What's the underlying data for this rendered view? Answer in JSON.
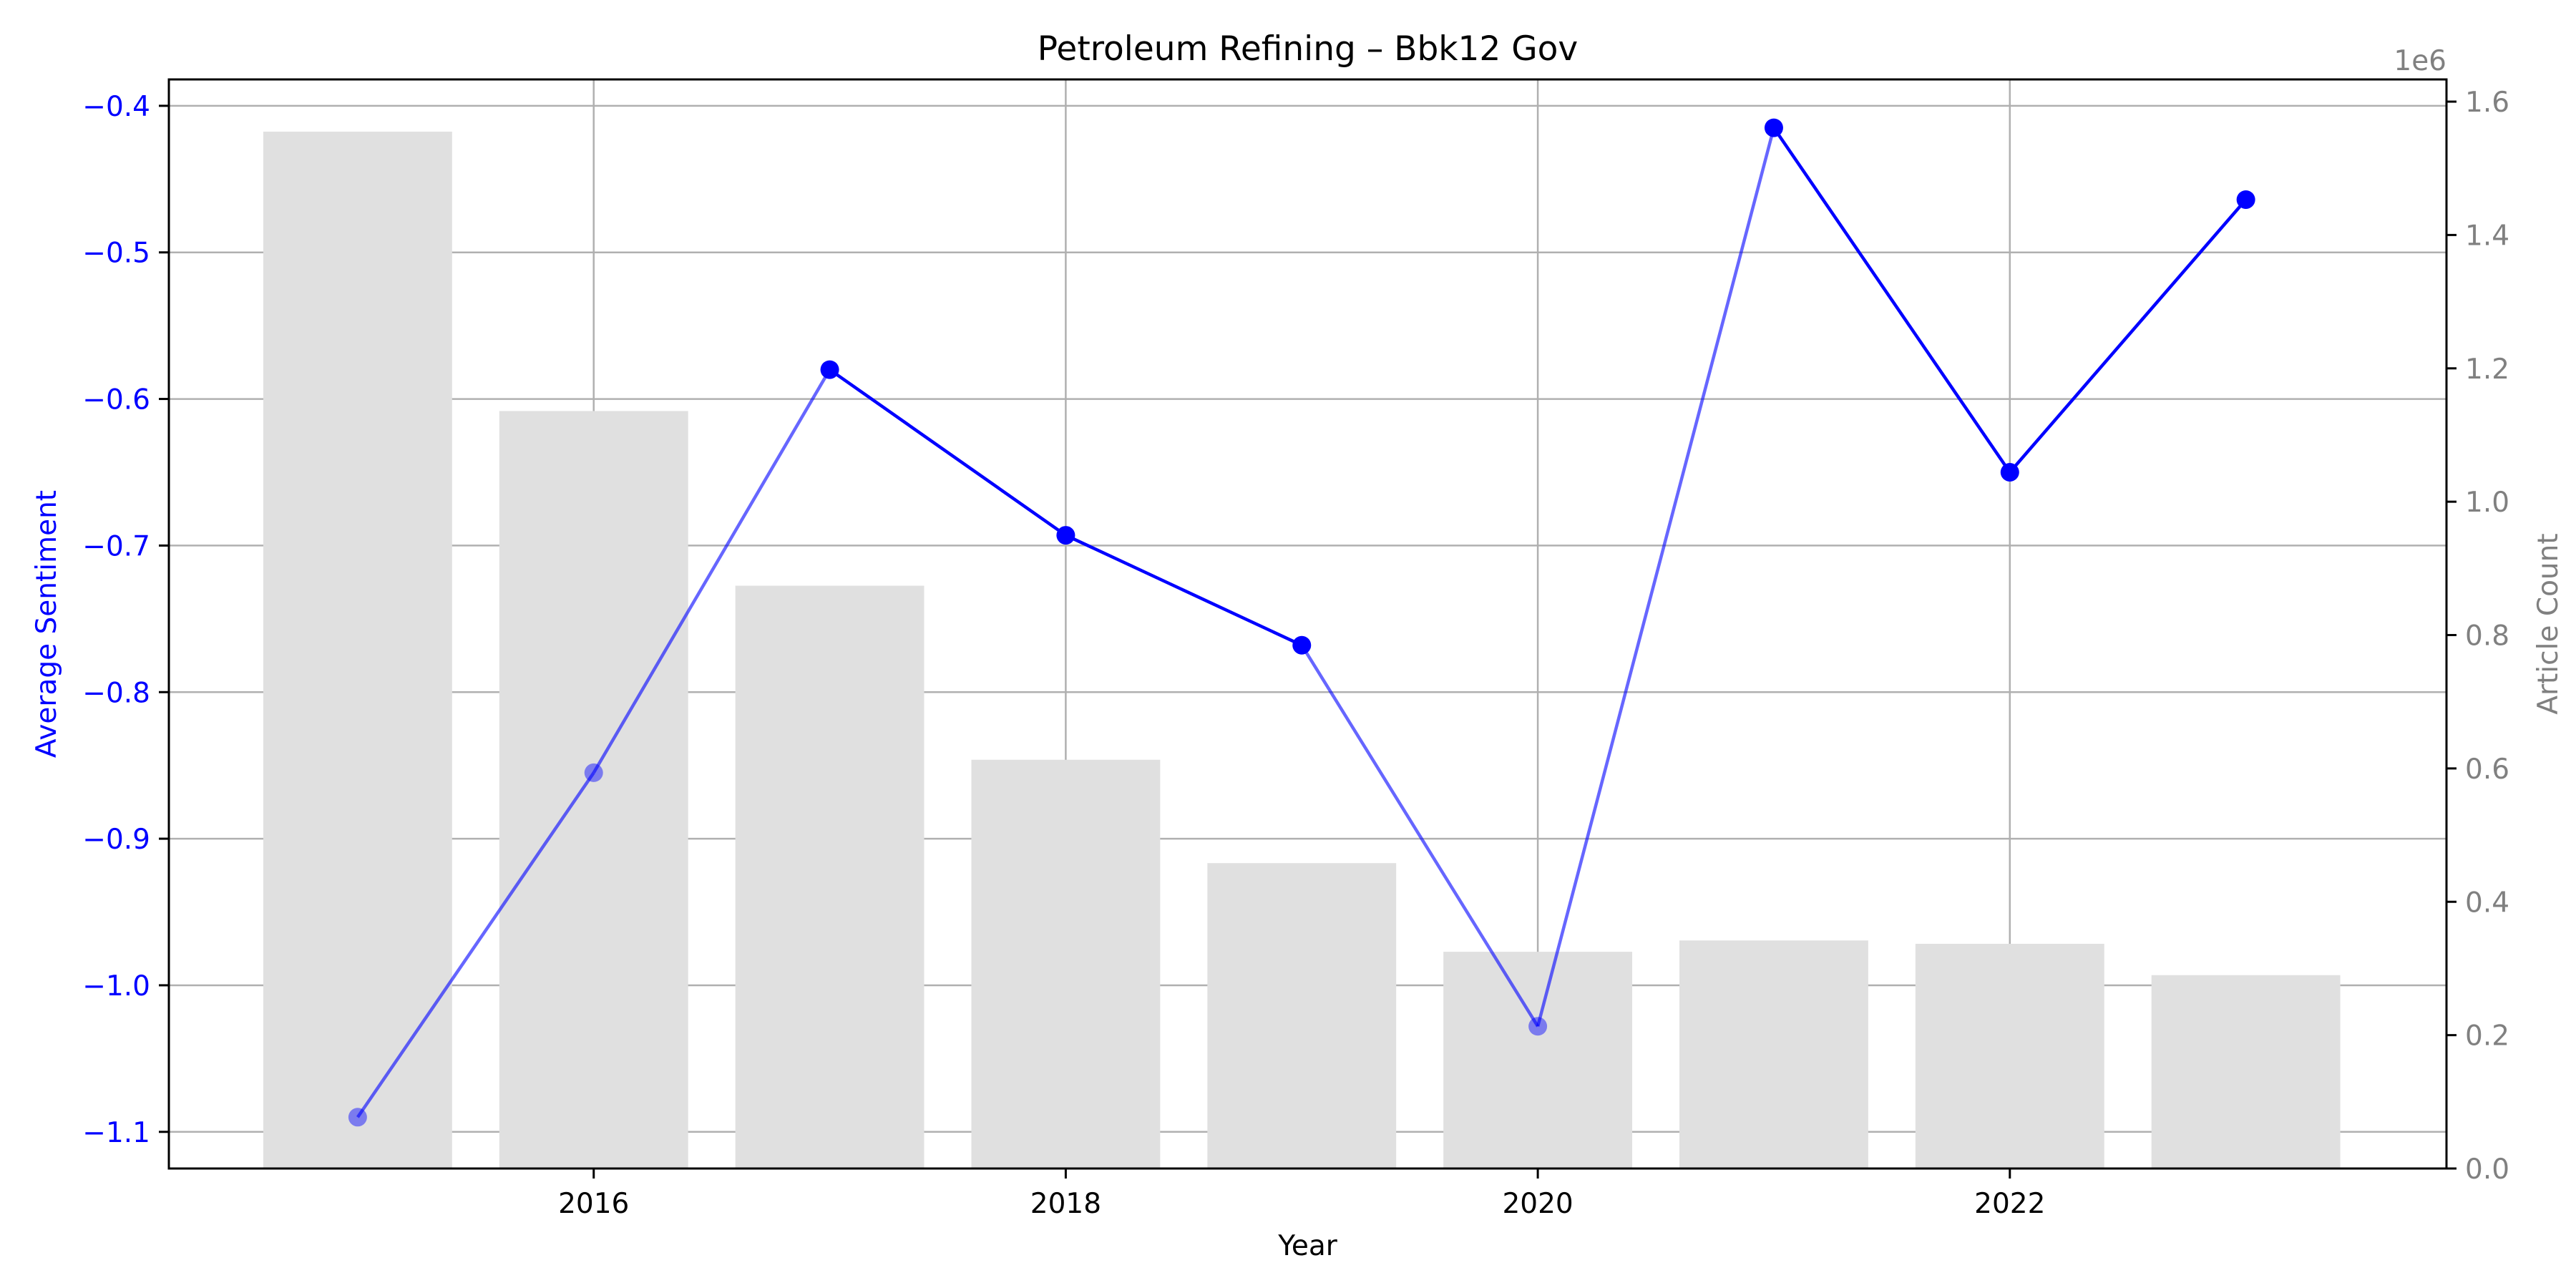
{
  "chart_data": {
    "type": "bar+line",
    "title": "Petroleum Refining – Bbk12 Gov",
    "xlabel": "Year",
    "ylabel_left": "Average Sentiment",
    "ylabel_right": "Article Count",
    "right_axis_offset_label": "1e6",
    "xlim": [
      2014.2,
      2023.85
    ],
    "ylim_left": [
      -1.125,
      -0.382
    ],
    "ylim_right": [
      0,
      1.6333
    ],
    "x_ticks": [
      2016,
      2018,
      2020,
      2022
    ],
    "x_tick_labels": [
      "2016",
      "2018",
      "2020",
      "2022"
    ],
    "y_left_ticks": [
      -1.1,
      -1.0,
      -0.9,
      -0.8,
      -0.7,
      -0.6,
      -0.5,
      -0.4
    ],
    "y_left_tick_labels": [
      "−1.1",
      "−1.0",
      "−0.9",
      "−0.8",
      "−0.7",
      "−0.6",
      "−0.5",
      "−0.4"
    ],
    "y_right_ticks": [
      0.0,
      0.2,
      0.4,
      0.6,
      0.8,
      1.0,
      1.2,
      1.4,
      1.6
    ],
    "y_right_tick_labels": [
      "0.0",
      "0.2",
      "0.4",
      "0.6",
      "0.8",
      "1.0",
      "1.2",
      "1.4",
      "1.6"
    ],
    "grid": true,
    "years": [
      2015,
      2016,
      2017,
      2018,
      2019,
      2020,
      2021,
      2022,
      2023
    ],
    "article_count": [
      1555000,
      1136000,
      874000,
      613000,
      458000,
      325000,
      342000,
      337000,
      290000
    ],
    "avg_sentiment": [
      -1.09,
      -0.855,
      -0.58,
      -0.693,
      -0.768,
      -1.028,
      -0.415,
      -0.65,
      -0.464
    ],
    "line_point_opacity": [
      0.45,
      0.45,
      1,
      1,
      1,
      0.45,
      1,
      1,
      1
    ],
    "colors": {
      "line": "#0000ff",
      "bar": "#e0e0e0",
      "grid": "#b0b0b0",
      "left_axis": "#0000ff",
      "right_axis": "#808080"
    }
  }
}
